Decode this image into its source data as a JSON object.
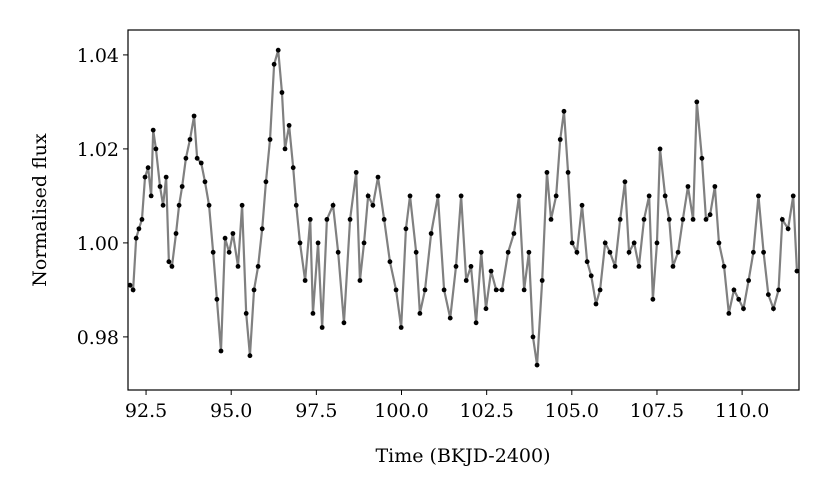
{
  "chart_data": {
    "type": "line",
    "xlabel": "Time (BKJD-2400)",
    "ylabel": "Normalised flux",
    "color": "#808080",
    "marker_color": "#000000",
    "xlim": [
      91.97,
      111.67
    ],
    "ylim": [
      0.9687,
      1.0453
    ],
    "xticks": [
      92.5,
      {
        "value": 95,
        "label": "95.0"
      },
      97.5,
      {
        "value": 100,
        "label": "100.0"
      },
      102.5,
      {
        "value": 105,
        "label": "105.0"
      },
      107.5,
      {
        "value": 110,
        "label": "110.0"
      }
    ],
    "yticks": [
      0.98,
      {
        "value": 1,
        "label": "1.00"
      },
      1.02,
      1.04
    ],
    "x": [
      92.03,
      92.12,
      92.21,
      92.29,
      92.38,
      92.47,
      92.56,
      92.65,
      92.71,
      92.79,
      92.91,
      93.0,
      93.09,
      93.17,
      93.26,
      93.38,
      93.47,
      93.56,
      93.67,
      93.79,
      93.91,
      94.0,
      94.12,
      94.23,
      94.35,
      94.47,
      94.58,
      94.7,
      94.82,
      94.94,
      95.05,
      95.2,
      95.32,
      95.44,
      95.55,
      95.67,
      95.79,
      95.91,
      96.02,
      96.14,
      96.26,
      96.38,
      96.49,
      96.58,
      96.7,
      96.82,
      96.91,
      97.02,
      97.17,
      97.32,
      97.4,
      97.55,
      97.67,
      97.81,
      97.99,
      98.14,
      98.31,
      98.49,
      98.67,
      98.78,
      98.9,
      99.02,
      99.16,
      99.31,
      99.49,
      99.66,
      99.84,
      99.99,
      100.13,
      100.25,
      100.43,
      100.54,
      100.69,
      100.87,
      101.07,
      101.25,
      101.43,
      101.6,
      101.75,
      101.9,
      102.04,
      102.19,
      102.34,
      102.48,
      102.63,
      102.78,
      102.95,
      103.13,
      103.3,
      103.45,
      103.6,
      103.74,
      103.86,
      103.98,
      104.13,
      104.27,
      104.39,
      104.54,
      104.66,
      104.77,
      104.89,
      105.01,
      105.15,
      105.3,
      105.45,
      105.57,
      105.71,
      105.83,
      105.98,
      106.12,
      106.27,
      106.42,
      106.56,
      106.68,
      106.83,
      106.97,
      107.12,
      107.27,
      107.38,
      107.5,
      107.59,
      107.74,
      107.86,
      107.97,
      108.12,
      108.26,
      108.41,
      108.56,
      108.67,
      108.82,
      108.94,
      109.06,
      109.2,
      109.32,
      109.47,
      109.61,
      109.76,
      109.9,
      110.04,
      110.19,
      110.33,
      110.48,
      110.63,
      110.77,
      110.92,
      111.07,
      111.18,
      111.35,
      111.5,
      111.61
    ],
    "values": [
      0.991,
      0.99,
      1.001,
      1.003,
      1.005,
      1.014,
      1.016,
      1.01,
      1.024,
      1.02,
      1.012,
      1.008,
      1.014,
      0.996,
      0.995,
      1.002,
      1.008,
      1.012,
      1.018,
      1.022,
      1.027,
      1.018,
      1.017,
      1.013,
      1.008,
      0.998,
      0.988,
      0.977,
      1.001,
      0.998,
      1.002,
      0.995,
      1.008,
      0.985,
      0.976,
      0.99,
      0.995,
      1.003,
      1.013,
      1.022,
      1.038,
      1.041,
      1.032,
      1.02,
      1.025,
      1.016,
      1.008,
      1.0,
      0.992,
      1.005,
      0.985,
      1.0,
      0.982,
      1.005,
      1.008,
      0.998,
      0.983,
      1.005,
      1.015,
      0.992,
      1.0,
      1.01,
      1.008,
      1.014,
      1.005,
      0.996,
      0.99,
      0.982,
      1.003,
      1.01,
      0.998,
      0.985,
      0.99,
      1.002,
      1.01,
      0.99,
      0.984,
      0.995,
      1.01,
      0.992,
      0.995,
      0.983,
      0.998,
      0.986,
      0.994,
      0.99,
      0.99,
      0.998,
      1.002,
      1.01,
      0.99,
      0.998,
      0.98,
      0.974,
      0.992,
      1.015,
      1.005,
      1.01,
      1.022,
      1.028,
      1.015,
      1.0,
      0.998,
      1.008,
      0.996,
      0.993,
      0.987,
      0.99,
      1.0,
      0.998,
      0.995,
      1.005,
      1.013,
      0.998,
      1.0,
      0.995,
      1.005,
      1.01,
      0.988,
      1.0,
      1.02,
      1.01,
      1.005,
      0.995,
      0.998,
      1.005,
      1.012,
      1.005,
      1.03,
      1.018,
      1.005,
      1.006,
      1.012,
      1.0,
      0.995,
      0.985,
      0.99,
      0.988,
      0.986,
      0.992,
      0.998,
      1.01,
      0.998,
      0.989,
      0.986,
      0.99,
      1.005,
      1.003,
      1.01,
      0.994
    ]
  }
}
